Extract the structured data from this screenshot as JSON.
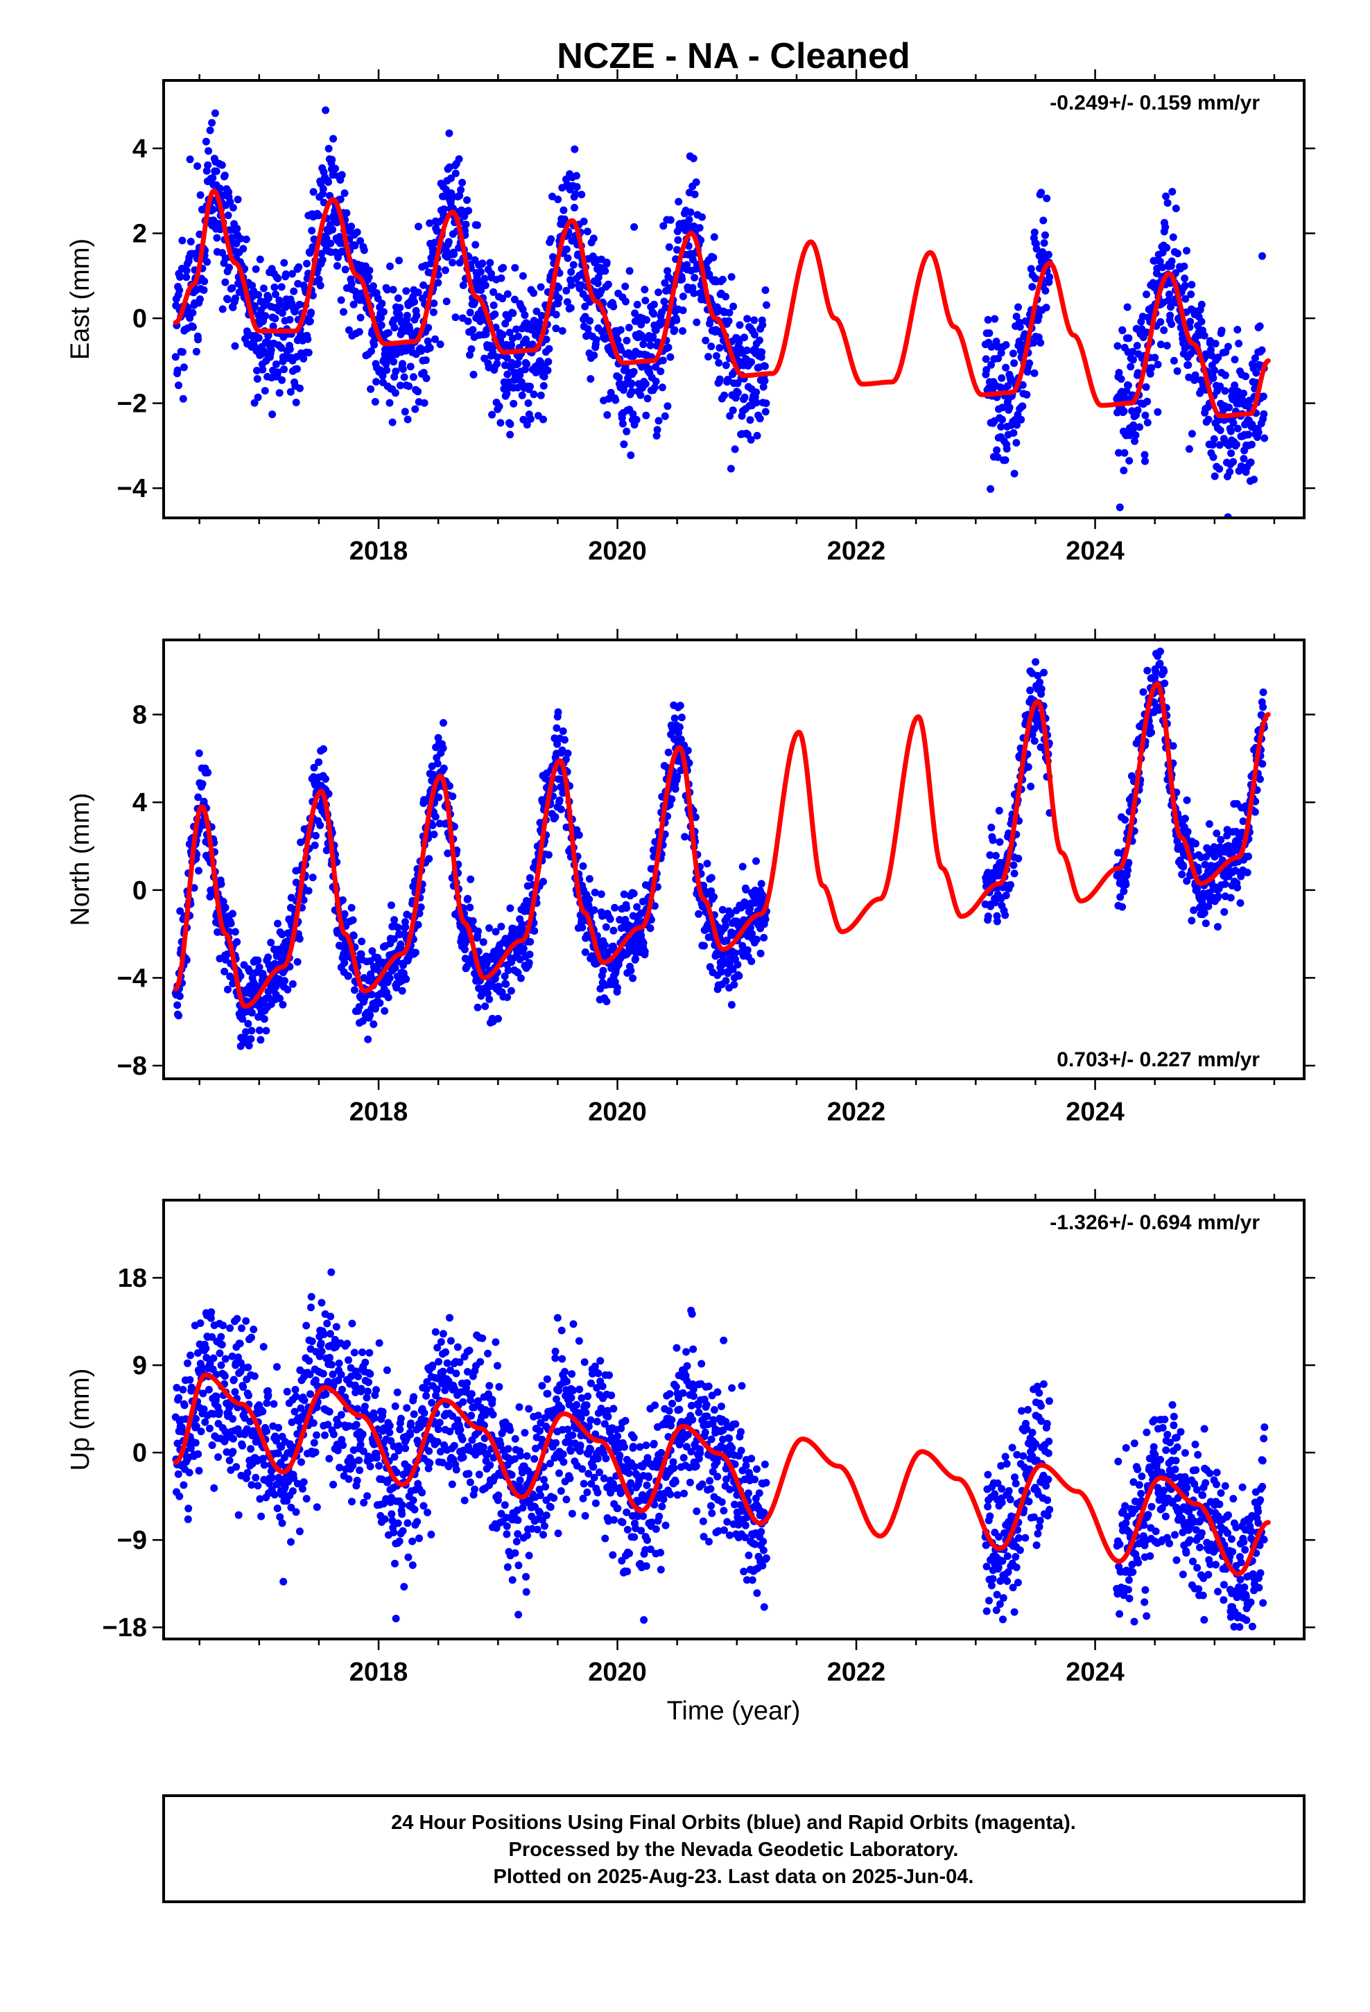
{
  "title": "NCZE  - NA - Cleaned",
  "x_axis_label": "Time (year)",
  "footer": {
    "line1": "24 Hour Positions Using Final Orbits (blue) and Rapid Orbits (magenta).",
    "line2": "Processed by the Nevada Geodetic Laboratory.",
    "line3": "Plotted on 2025-Aug-23. Last data on 2025-Jun-04."
  },
  "colors": {
    "final_orbit_points": "#0000ff",
    "model_curve": "#ff0000",
    "frame": "#000000"
  },
  "chart_data": [
    {
      "type": "scatter",
      "panel": "east",
      "ylabel": "East (mm)",
      "rate": "-0.249+/- 0.159 mm/yr",
      "rate_position": "top-right",
      "xlim": [
        2016.2,
        2025.75
      ],
      "ylim": [
        -4.7,
        5.6
      ],
      "x_ticks": [
        2018,
        2020,
        2022,
        2024
      ],
      "y_ticks": [
        -4,
        -2,
        0,
        2,
        4
      ],
      "y_tick_labels": [
        "−4",
        "−2",
        "0",
        "2",
        "4"
      ],
      "grid": false,
      "series": [
        {
          "role": "daily positions",
          "segments": [
            [
              2016.3,
              2021.25
            ],
            [
              2023.08,
              2023.62
            ],
            [
              2024.18,
              2025.42
            ]
          ],
          "points_per_year": 330,
          "scatter_sd": 0.85
        },
        {
          "role": "model fit",
          "points": [
            [
              2016.3,
              -0.1
            ],
            [
              2016.45,
              0.8
            ],
            [
              2016.62,
              3.0
            ],
            [
              2016.8,
              1.3
            ],
            [
              2017.0,
              -0.3
            ],
            [
              2017.3,
              -0.3
            ],
            [
              2017.62,
              2.8
            ],
            [
              2017.82,
              1.0
            ],
            [
              2018.05,
              -0.6
            ],
            [
              2018.3,
              -0.55
            ],
            [
              2018.62,
              2.5
            ],
            [
              2018.82,
              0.5
            ],
            [
              2019.05,
              -0.8
            ],
            [
              2019.3,
              -0.75
            ],
            [
              2019.62,
              2.3
            ],
            [
              2019.82,
              0.4
            ],
            [
              2020.05,
              -1.05
            ],
            [
              2020.3,
              -1.0
            ],
            [
              2020.62,
              2.0
            ],
            [
              2020.82,
              0.0
            ],
            [
              2021.05,
              -1.35
            ],
            [
              2021.3,
              -1.3
            ],
            [
              2021.62,
              1.8
            ],
            [
              2021.82,
              0.0
            ],
            [
              2022.05,
              -1.55
            ],
            [
              2022.3,
              -1.5
            ],
            [
              2022.62,
              1.55
            ],
            [
              2022.82,
              -0.2
            ],
            [
              2023.05,
              -1.8
            ],
            [
              2023.3,
              -1.75
            ],
            [
              2023.62,
              1.3
            ],
            [
              2023.82,
              -0.4
            ],
            [
              2024.05,
              -2.05
            ],
            [
              2024.3,
              -2.0
            ],
            [
              2024.62,
              1.05
            ],
            [
              2024.82,
              -0.6
            ],
            [
              2025.05,
              -2.3
            ],
            [
              2025.3,
              -2.25
            ],
            [
              2025.45,
              -1.0
            ]
          ]
        }
      ]
    },
    {
      "type": "scatter",
      "panel": "north",
      "ylabel": "North (mm)",
      "rate": "0.703+/- 0.227 mm/yr",
      "rate_position": "bottom-right",
      "xlim": [
        2016.2,
        2025.75
      ],
      "ylim": [
        -8.6,
        11.4
      ],
      "x_ticks": [
        2018,
        2020,
        2022,
        2024
      ],
      "y_ticks": [
        -8,
        -4,
        0,
        4,
        8
      ],
      "y_tick_labels": [
        "−8",
        "−4",
        "0",
        "4",
        "8"
      ],
      "grid": false,
      "series": [
        {
          "role": "daily positions",
          "segments": [
            [
              2016.3,
              2021.25
            ],
            [
              2023.08,
              2023.62
            ],
            [
              2024.18,
              2025.42
            ]
          ],
          "points_per_year": 330,
          "scatter_sd": 1.0
        },
        {
          "role": "model fit",
          "points": [
            [
              2016.3,
              -4.5
            ],
            [
              2016.52,
              3.8
            ],
            [
              2016.72,
              -2.0
            ],
            [
              2016.88,
              -5.3
            ],
            [
              2017.2,
              -3.5
            ],
            [
              2017.52,
              4.5
            ],
            [
              2017.72,
              -2.0
            ],
            [
              2017.88,
              -4.6
            ],
            [
              2018.2,
              -2.9
            ],
            [
              2018.52,
              5.2
            ],
            [
              2018.72,
              -1.5
            ],
            [
              2018.88,
              -4.0
            ],
            [
              2019.2,
              -2.3
            ],
            [
              2019.52,
              5.9
            ],
            [
              2019.72,
              -1.0
            ],
            [
              2019.88,
              -3.3
            ],
            [
              2020.2,
              -1.7
            ],
            [
              2020.52,
              6.5
            ],
            [
              2020.72,
              -0.4
            ],
            [
              2020.88,
              -2.7
            ],
            [
              2021.2,
              -1.1
            ],
            [
              2021.52,
              7.2
            ],
            [
              2021.72,
              0.2
            ],
            [
              2021.88,
              -1.9
            ],
            [
              2022.2,
              -0.4
            ],
            [
              2022.52,
              7.9
            ],
            [
              2022.72,
              1.0
            ],
            [
              2022.88,
              -1.2
            ],
            [
              2023.2,
              0.3
            ],
            [
              2023.52,
              8.6
            ],
            [
              2023.72,
              1.7
            ],
            [
              2023.88,
              -0.5
            ],
            [
              2024.2,
              1.0
            ],
            [
              2024.52,
              9.4
            ],
            [
              2024.72,
              2.4
            ],
            [
              2024.88,
              0.3
            ],
            [
              2025.2,
              1.5
            ],
            [
              2025.45,
              8.0
            ]
          ]
        }
      ]
    },
    {
      "type": "scatter",
      "panel": "up",
      "ylabel": "Up (mm)",
      "rate": "-1.326+/- 0.694 mm/yr",
      "rate_position": "top-right",
      "xlim": [
        2016.2,
        2025.75
      ],
      "ylim": [
        -19.2,
        26.0
      ],
      "x_ticks": [
        2018,
        2020,
        2022,
        2024
      ],
      "y_ticks": [
        -18,
        -9,
        0,
        9,
        18
      ],
      "y_tick_labels": [
        "−18",
        "−9",
        "0",
        "9",
        "18"
      ],
      "grid": false,
      "series": [
        {
          "role": "daily positions",
          "segments": [
            [
              2016.3,
              2021.25
            ],
            [
              2023.08,
              2023.62
            ],
            [
              2024.18,
              2025.42
            ]
          ],
          "points_per_year": 330,
          "scatter_sd": 4.2
        },
        {
          "role": "model fit",
          "points": [
            [
              2016.3,
              -1.0
            ],
            [
              2016.55,
              8.0
            ],
            [
              2016.85,
              5.0
            ],
            [
              2017.2,
              -2.0
            ],
            [
              2017.55,
              6.7
            ],
            [
              2017.85,
              3.8
            ],
            [
              2018.2,
              -3.3
            ],
            [
              2018.55,
              5.4
            ],
            [
              2018.85,
              2.5
            ],
            [
              2019.2,
              -4.6
            ],
            [
              2019.55,
              4.0
            ],
            [
              2019.85,
              1.2
            ],
            [
              2020.2,
              -6.0
            ],
            [
              2020.55,
              2.7
            ],
            [
              2020.85,
              -0.1
            ],
            [
              2021.2,
              -7.3
            ],
            [
              2021.55,
              1.4
            ],
            [
              2021.85,
              -1.4
            ],
            [
              2022.2,
              -8.6
            ],
            [
              2022.55,
              0.1
            ],
            [
              2022.85,
              -2.7
            ],
            [
              2023.2,
              -9.9
            ],
            [
              2023.55,
              -1.3
            ],
            [
              2023.85,
              -4.0
            ],
            [
              2024.2,
              -11.2
            ],
            [
              2024.55,
              -2.6
            ],
            [
              2024.85,
              -5.3
            ],
            [
              2025.2,
              -12.5
            ],
            [
              2025.45,
              -7.2
            ]
          ]
        }
      ]
    }
  ]
}
